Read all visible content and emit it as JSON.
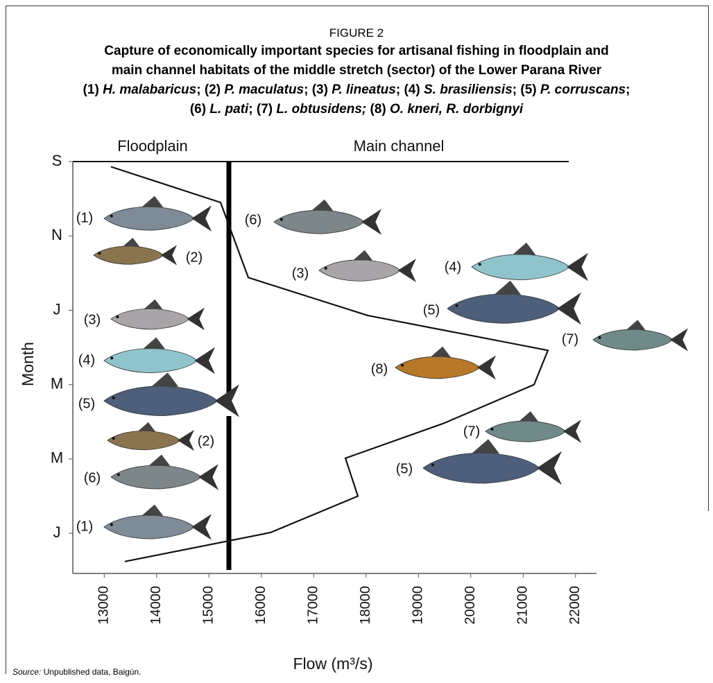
{
  "figure_label": "FIGURE 2",
  "title_lines": [
    "Capture of economically important species for artisanal fishing in floodplain and",
    "main channel habitats of the middle stretch (sector) of the Lower Parana River"
  ],
  "species_lines": [
    [
      {
        "num": "(1)",
        "name": "H. malabaricus",
        "sep": ";"
      },
      {
        "num": "(2)",
        "name": "P. maculatus",
        "sep": ";"
      },
      {
        "num": "(3)",
        "name": "P. lineatus",
        "sep": ";"
      },
      {
        "num": "(4)",
        "name": "S. brasiliensis",
        "sep": ";"
      },
      {
        "num": "(5)",
        "name": "P. corruscans",
        "sep": ";"
      }
    ],
    [
      {
        "num": "(6)",
        "name": "L. pati",
        "sep": ";"
      },
      {
        "num": "(7)",
        "name": "L. obtusidens;"
      },
      {
        "num": "(8)",
        "name": "O. kneri, R. dorbignyi"
      }
    ]
  ],
  "chart_data": {
    "type": "line",
    "header_left": "Floodplain",
    "header_right": "Main channel",
    "xlabel": "Flow (m³/s)",
    "ylabel": "Month",
    "x": [
      13128,
      15221,
      15751,
      18029,
      21473,
      21208,
      19486,
      17605,
      17844,
      16175,
      13393
    ],
    "values": [
      0.07,
      0.55,
      1.56,
      2.07,
      2.54,
      3.0,
      3.52,
      3.99,
      4.5,
      4.99,
      5.38
    ],
    "color": "#111111",
    "xlim": [
      12400,
      22400
    ],
    "xticks": [
      13000,
      14000,
      15000,
      16000,
      17000,
      18000,
      19000,
      20000,
      21000,
      22000
    ],
    "ylim": [
      0,
      5.54
    ],
    "yticks": [
      {
        "value": 0,
        "label": "S"
      },
      {
        "value": 1,
        "label": "N"
      },
      {
        "value": 2,
        "label": "J"
      },
      {
        "value": 3,
        "label": "M"
      },
      {
        "value": 4,
        "label": "M"
      },
      {
        "value": 5,
        "label": "J"
      }
    ],
    "fish_labels": [
      "(1)",
      "(2)",
      "(3)",
      "(4)",
      "(5)",
      "(2)",
      "(6)",
      "(1)",
      "(6)",
      "(3)",
      "(4)",
      "(5)",
      "(7)",
      "(8)",
      "(7)",
      "(5)"
    ]
  },
  "source_label": "Source:",
  "source_text": "Unpublished data, Baigún."
}
